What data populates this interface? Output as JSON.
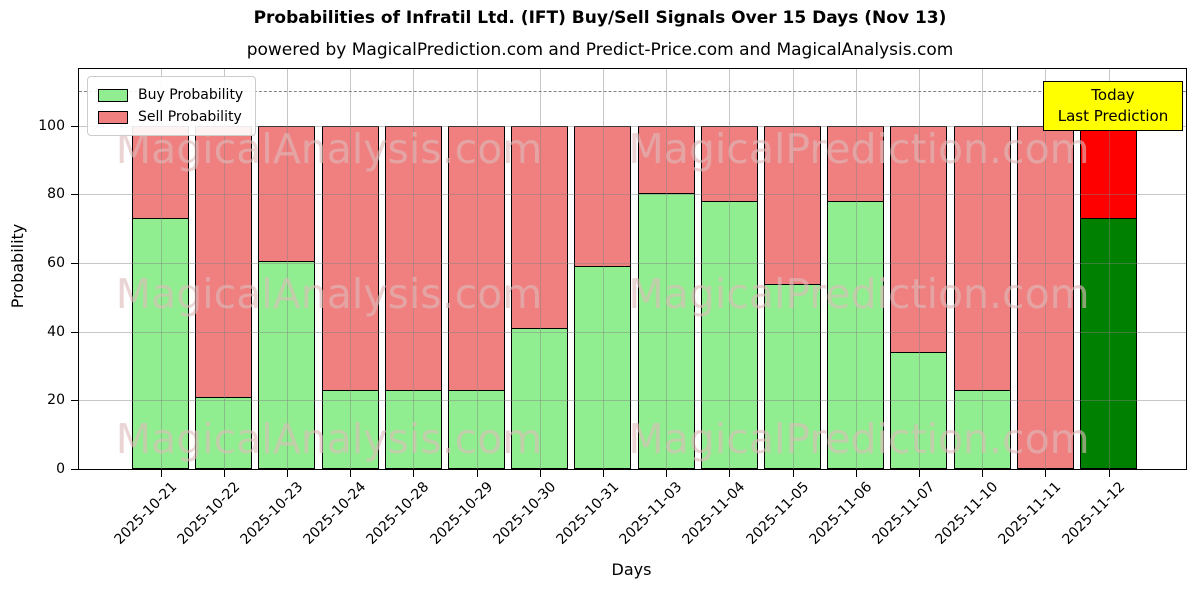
{
  "chart_data": {
    "type": "bar",
    "stacked": true,
    "title": "Probabilities of Infratil Ltd. (IFT) Buy/Sell Signals Over 15 Days (Nov 13)",
    "subtitle": "powered by MagicalPrediction.com and Predict-Price.com and MagicalAnalysis.com",
    "xlabel": "Days",
    "ylabel": "Probability",
    "ylim": [
      0,
      116
    ],
    "yticks": [
      0,
      20,
      40,
      60,
      80,
      100
    ],
    "dashed_hline": 110,
    "grid": true,
    "legend_position": "top-left",
    "categories": [
      "2025-10-21",
      "2025-10-22",
      "2025-10-23",
      "2025-10-24",
      "2025-10-28",
      "2025-10-29",
      "2025-10-30",
      "2025-10-31",
      "2025-11-03",
      "2025-11-04",
      "2025-11-05",
      "2025-11-06",
      "2025-11-07",
      "2025-11-10",
      "2025-11-11",
      "2025-11-12"
    ],
    "series": [
      {
        "name": "Buy Probability",
        "values": [
          73,
          21,
          60.5,
          23,
          23,
          23,
          41,
          59,
          80.5,
          78,
          54,
          78,
          34,
          23,
          0,
          73
        ]
      },
      {
        "name": "Sell Probability",
        "values": [
          27,
          79,
          39.5,
          77,
          77,
          77,
          59,
          41,
          19.5,
          22,
          46,
          22,
          66,
          77,
          100,
          27
        ]
      }
    ],
    "today_index": 15,
    "annotation": {
      "line1": "Today",
      "line2": "Last Prediction"
    },
    "watermark_left": "MagicalAnalysis.com",
    "watermark_right": "MagicalPrediction.com",
    "colors": {
      "buy": "#90ee90",
      "sell": "#f08080",
      "today_buy": "#008000",
      "today_sell": "#ff0000",
      "bar_edge": "#000000",
      "annotation_bg": "#ffff00"
    }
  }
}
